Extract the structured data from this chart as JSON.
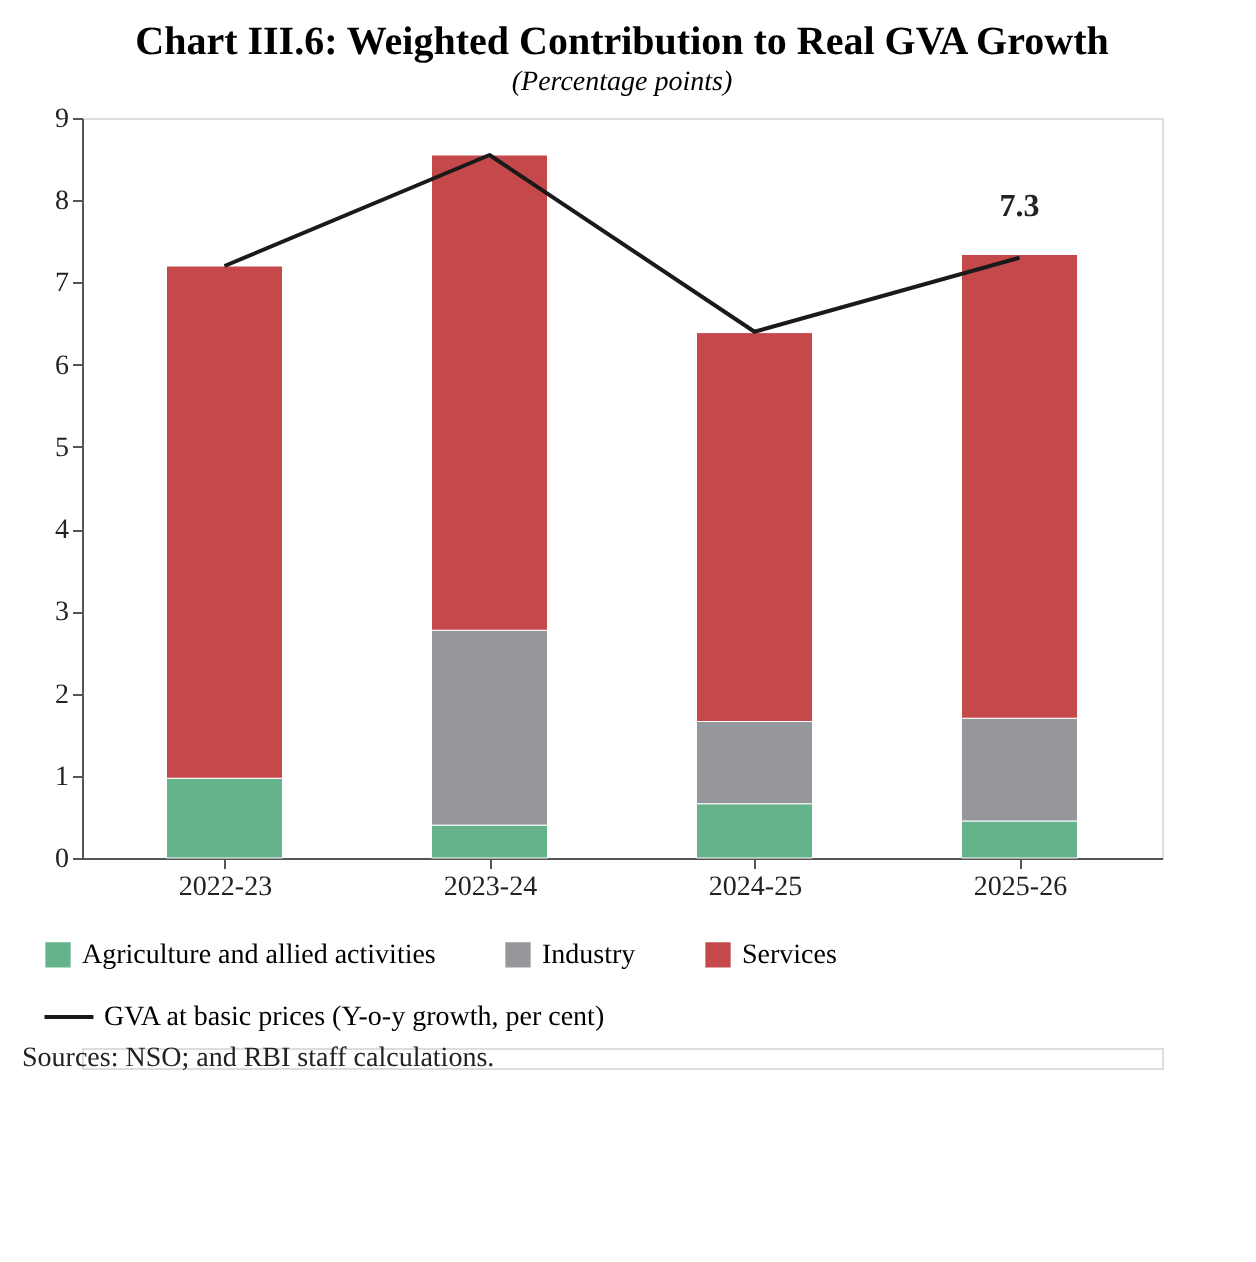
{
  "chart_data": {
    "type": "bar",
    "title": "Chart III.6: Weighted Contribution to Real GVA Growth",
    "subtitle": "(Percentage points)",
    "categories": [
      "2022-23",
      "2023-24",
      "2024-25",
      "2025-26"
    ],
    "stacked": true,
    "series": [
      {
        "name": "Agriculture and allied activities",
        "color": "#64b38b",
        "values": [
          0.97,
          0.4,
          0.66,
          0.45
        ]
      },
      {
        "name": "Industry",
        "color": "#96979b",
        "values": [
          0,
          2.37,
          1.0,
          1.25
        ]
      },
      {
        "name": "Services",
        "color": "#c5494a",
        "values": [
          6.23,
          5.78,
          4.73,
          5.64
        ]
      },
      {
        "name": "GVA at basic prices (Y-o-y growth, per cent)",
        "type": "line",
        "color": "#1a1a1a",
        "values": [
          7.2,
          8.55,
          6.4,
          7.3
        ],
        "value_labels": [
          null,
          null,
          null,
          "7.3"
        ]
      }
    ],
    "ylim": [
      0,
      9
    ],
    "yticks": [
      0,
      1,
      2,
      3,
      4,
      5,
      6,
      7,
      8,
      9
    ],
    "grid": false,
    "legend": "bottom",
    "annotations": [
      "Sources: NSO; and RBI staff calculations."
    ]
  }
}
